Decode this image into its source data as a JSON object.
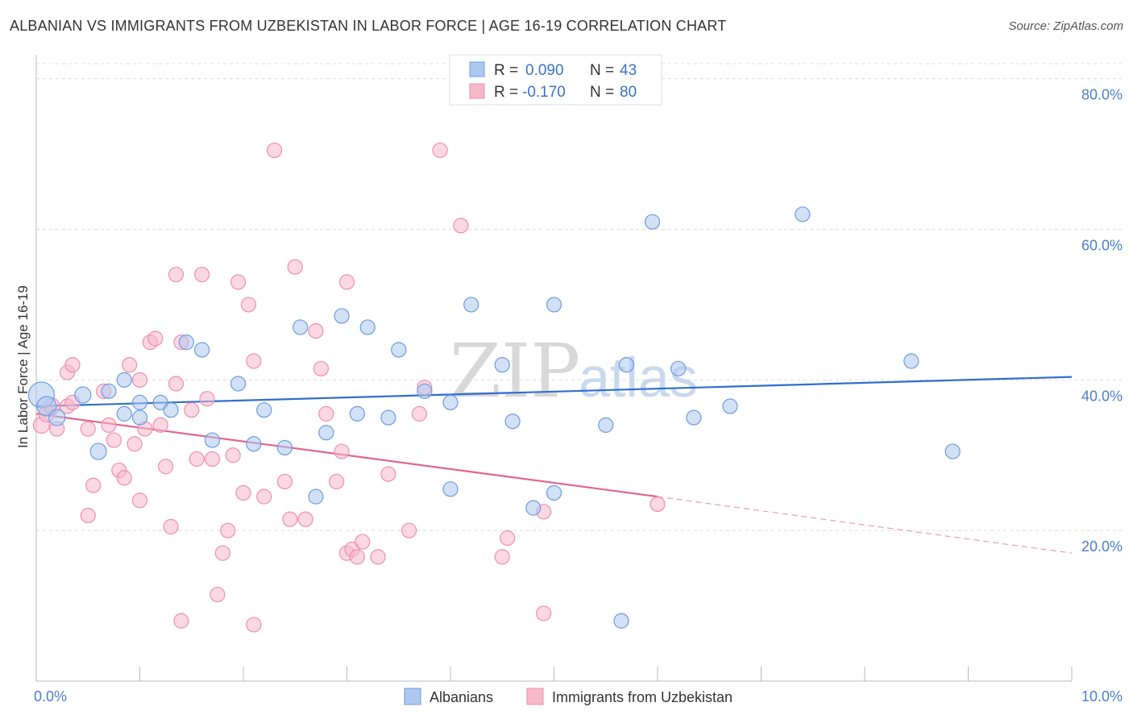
{
  "header": {
    "title": "ALBANIAN VS IMMIGRANTS FROM UZBEKISTAN IN LABOR FORCE | AGE 16-19 CORRELATION CHART",
    "source": "Source: ZipAtlas.com"
  },
  "legend": {
    "rows": [
      {
        "r_label": "R =",
        "r_value": "0.090",
        "n_label": "N =",
        "n_value": "43",
        "color": "#aec8f0"
      },
      {
        "r_label": "R =",
        "r_value": "-0.170",
        "n_label": "N =",
        "n_value": "80",
        "color": "#f7b8cc"
      }
    ]
  },
  "watermark": {
    "zip": "ZIP",
    "atlas": "atlas"
  },
  "chart_data": {
    "type": "scatter",
    "ylabel": "In Labor Force | Age 16-19",
    "xlim": [
      0,
      10
    ],
    "ylim": [
      0,
      82
    ],
    "x_ticks": [
      {
        "value": 0,
        "label": "0.0%"
      },
      {
        "value": 10,
        "label": "10.0%"
      }
    ],
    "y_ticks": [
      {
        "value": 20,
        "label": "20.0%"
      },
      {
        "value": 40,
        "label": "40.0%"
      },
      {
        "value": 60,
        "label": "60.0%"
      },
      {
        "value": 80,
        "label": "80.0%"
      }
    ],
    "grid": true,
    "series": [
      {
        "name": "Albanians",
        "color": "#6a9de0",
        "fill": "#aec8f0",
        "trend": {
          "x": [
            0,
            10
          ],
          "y": [
            36.5,
            40.4
          ],
          "color": "#2f6fcf"
        },
        "points": [
          [
            0.05,
            38.0,
            16
          ],
          [
            0.1,
            36.5,
            12
          ],
          [
            0.2,
            35.0,
            10
          ],
          [
            0.45,
            38.0,
            10
          ],
          [
            0.6,
            30.5,
            10
          ],
          [
            0.7,
            38.5,
            9
          ],
          [
            0.85,
            40.0,
            9
          ],
          [
            0.85,
            35.5,
            9
          ],
          [
            1.0,
            35.0,
            9
          ],
          [
            1.0,
            37.0,
            9
          ],
          [
            1.2,
            37.0,
            9
          ],
          [
            1.3,
            36.0,
            9
          ],
          [
            1.45,
            45.0,
            9
          ],
          [
            1.6,
            44.0,
            9
          ],
          [
            1.7,
            32.0,
            9
          ],
          [
            1.95,
            39.5,
            9
          ],
          [
            2.1,
            31.5,
            9
          ],
          [
            2.2,
            36.0,
            9
          ],
          [
            2.4,
            31.0,
            9
          ],
          [
            2.55,
            47.0,
            9
          ],
          [
            2.7,
            24.5,
            9
          ],
          [
            2.8,
            33.0,
            9
          ],
          [
            2.95,
            48.5,
            9
          ],
          [
            3.1,
            35.5,
            9
          ],
          [
            3.2,
            47.0,
            9
          ],
          [
            3.4,
            35.0,
            9
          ],
          [
            3.5,
            44.0,
            9
          ],
          [
            3.75,
            38.5,
            9
          ],
          [
            4.0,
            37.0,
            9
          ],
          [
            4.0,
            25.5,
            9
          ],
          [
            4.2,
            50.0,
            9
          ],
          [
            4.5,
            42.0,
            9
          ],
          [
            4.6,
            34.5,
            9
          ],
          [
            4.8,
            23.0,
            9
          ],
          [
            5.0,
            25.0,
            9
          ],
          [
            5.0,
            50.0,
            9
          ],
          [
            5.5,
            34.0,
            9
          ],
          [
            5.7,
            42.0,
            9
          ],
          [
            5.65,
            8.0,
            9
          ],
          [
            5.95,
            61.0,
            9
          ],
          [
            6.2,
            41.5,
            9
          ],
          [
            6.35,
            35.0,
            9
          ],
          [
            6.7,
            36.5,
            9
          ],
          [
            7.4,
            62.0,
            9
          ],
          [
            8.45,
            42.5,
            9
          ],
          [
            8.85,
            30.5,
            9
          ]
        ]
      },
      {
        "name": "Immigrants from Uzbekistan",
        "color": "#ee8fae",
        "fill": "#f7b8cc",
        "trend": {
          "x": [
            0,
            6
          ],
          "y": [
            35.5,
            24.5
          ],
          "color": "#e06590"
        },
        "trend_dashed": {
          "x": [
            6,
            10
          ],
          "y": [
            24.5,
            17.0
          ],
          "color": "#ee9ab8"
        },
        "points": [
          [
            0.05,
            34.0,
            10
          ],
          [
            0.1,
            35.5,
            10
          ],
          [
            0.15,
            36.5,
            10
          ],
          [
            0.2,
            33.5,
            9
          ],
          [
            0.3,
            36.5,
            9
          ],
          [
            0.3,
            41.0,
            9
          ],
          [
            0.35,
            42.0,
            9
          ],
          [
            0.35,
            37.0,
            9
          ],
          [
            0.5,
            33.5,
            9
          ],
          [
            0.5,
            22.0,
            9
          ],
          [
            0.55,
            26.0,
            9
          ],
          [
            0.65,
            38.5,
            9
          ],
          [
            0.7,
            34.0,
            9
          ],
          [
            0.75,
            32.0,
            9
          ],
          [
            0.8,
            28.0,
            9
          ],
          [
            0.85,
            27.0,
            9
          ],
          [
            0.9,
            42.0,
            9
          ],
          [
            0.95,
            31.5,
            9
          ],
          [
            1.0,
            40.0,
            9
          ],
          [
            1.0,
            24.0,
            9
          ],
          [
            1.05,
            33.5,
            9
          ],
          [
            1.1,
            45.0,
            9
          ],
          [
            1.15,
            45.5,
            9
          ],
          [
            1.2,
            34.0,
            9
          ],
          [
            1.25,
            28.5,
            9
          ],
          [
            1.3,
            20.5,
            9
          ],
          [
            1.35,
            39.5,
            9
          ],
          [
            1.35,
            54.0,
            9
          ],
          [
            1.4,
            45.0,
            9
          ],
          [
            1.4,
            8.0,
            9
          ],
          [
            1.5,
            36.0,
            9
          ],
          [
            1.55,
            29.5,
            9
          ],
          [
            1.6,
            54.0,
            9
          ],
          [
            1.65,
            37.5,
            9
          ],
          [
            1.7,
            29.5,
            9
          ],
          [
            1.75,
            11.5,
            9
          ],
          [
            1.8,
            17.0,
            9
          ],
          [
            1.85,
            20.0,
            9
          ],
          [
            1.9,
            30.0,
            9
          ],
          [
            1.95,
            53.0,
            9
          ],
          [
            2.0,
            25.0,
            9
          ],
          [
            2.05,
            50.0,
            9
          ],
          [
            2.1,
            42.5,
            9
          ],
          [
            2.1,
            7.5,
            9
          ],
          [
            2.2,
            24.5,
            9
          ],
          [
            2.3,
            70.5,
            9
          ],
          [
            2.4,
            26.5,
            9
          ],
          [
            2.45,
            21.5,
            9
          ],
          [
            2.5,
            55.0,
            9
          ],
          [
            2.6,
            21.5,
            9
          ],
          [
            2.7,
            46.5,
            9
          ],
          [
            2.75,
            41.5,
            9
          ],
          [
            2.8,
            35.5,
            9
          ],
          [
            2.9,
            26.5,
            9
          ],
          [
            2.95,
            30.5,
            9
          ],
          [
            3.0,
            17.0,
            9
          ],
          [
            3.0,
            53.0,
            9
          ],
          [
            3.05,
            17.5,
            9
          ],
          [
            3.1,
            16.5,
            9
          ],
          [
            3.15,
            18.5,
            9
          ],
          [
            3.3,
            16.5,
            9
          ],
          [
            3.4,
            27.5,
            9
          ],
          [
            3.6,
            20.0,
            9
          ],
          [
            3.7,
            35.5,
            9
          ],
          [
            3.75,
            39.0,
            9
          ],
          [
            3.9,
            70.5,
            9
          ],
          [
            4.1,
            60.5,
            9
          ],
          [
            4.5,
            16.5,
            9
          ],
          [
            4.55,
            19.0,
            9
          ],
          [
            4.9,
            9.0,
            9
          ],
          [
            4.9,
            22.5,
            9
          ],
          [
            6.0,
            23.5,
            9
          ]
        ]
      }
    ],
    "legend_position": "bottom"
  }
}
